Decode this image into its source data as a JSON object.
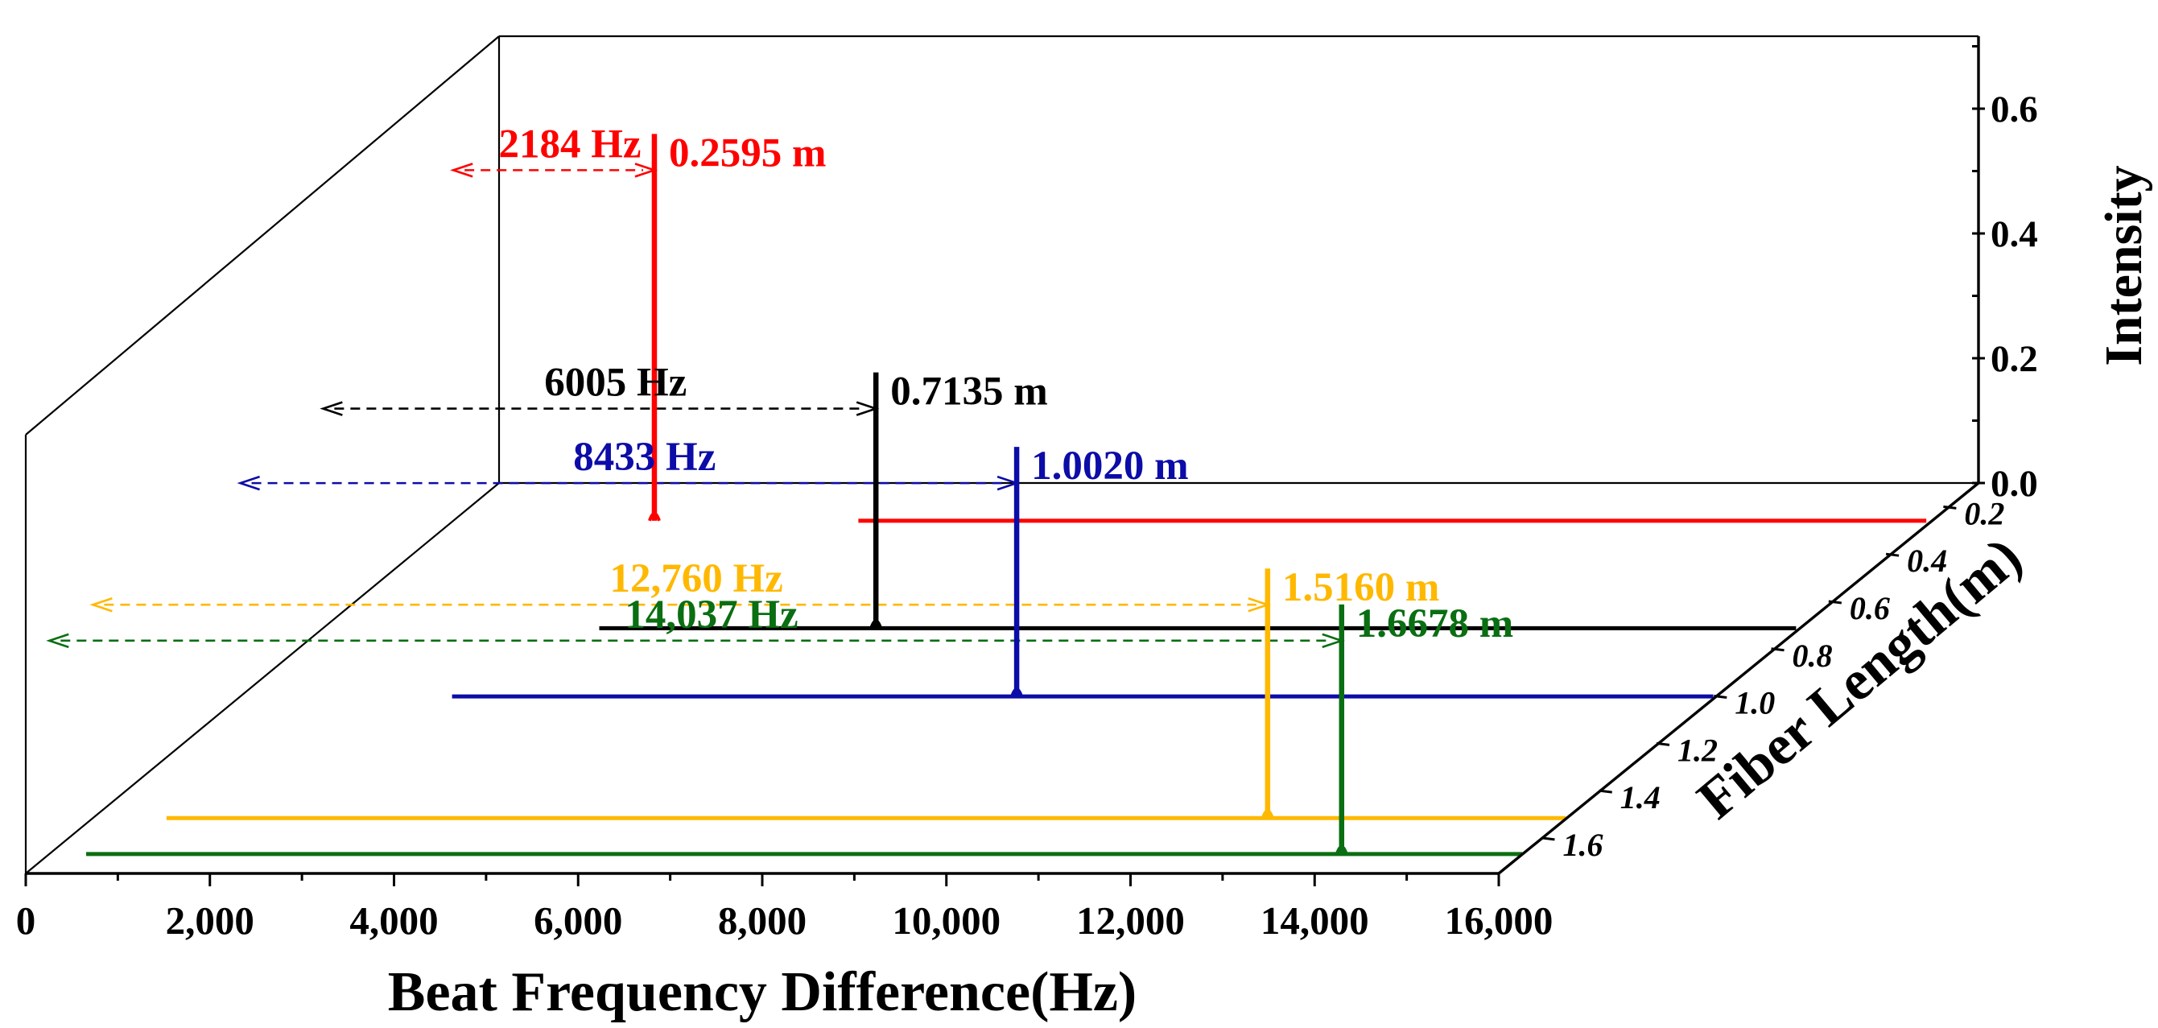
{
  "chart_data": {
    "type": "3d-waterfall-line",
    "xlabel": "Beat Frequency Difference(Hz)",
    "ylabel": "Intensity",
    "zlabel": "Fiber Length(m)",
    "xlim": [
      0,
      16000
    ],
    "ylim": [
      0,
      0.7
    ],
    "zlim": [
      0.1,
      1.75
    ],
    "x_ticks": [
      "0",
      "2,000",
      "4,000",
      "6,000",
      "8,000",
      "10,000",
      "12,000",
      "14,000",
      "16,000"
    ],
    "x_tick_values": [
      0,
      2000,
      4000,
      6000,
      8000,
      10000,
      12000,
      14000,
      16000
    ],
    "y_ticks": [
      "0.0",
      "0.2",
      "0.4",
      "0.6"
    ],
    "y_tick_values": [
      0,
      0.2,
      0.4,
      0.6
    ],
    "z_ticks": [
      "0.2",
      "0.4",
      "0.6",
      "0.8",
      "1.0",
      "1.2",
      "1.4",
      "1.6"
    ],
    "z_tick_values": [
      0.2,
      0.4,
      0.6,
      0.8,
      1.0,
      1.2,
      1.4,
      1.6
    ],
    "series": [
      {
        "name": "0.2595 m",
        "fiber_length": 0.2595,
        "beat_frequency": 2184,
        "peak_intensity": 0.62,
        "color": "#ff0000",
        "freq_label": "2184 Hz",
        "length_label": "0.2595 m",
        "baseline_x": [
          4400,
          16000
        ]
      },
      {
        "name": "0.7135 m",
        "fiber_length": 0.7135,
        "beat_frequency": 6005,
        "peak_intensity": 0.41,
        "color": "#000000",
        "freq_label": "6005 Hz",
        "length_label": "0.7135 m",
        "baseline_x": [
          3000,
          16000
        ]
      },
      {
        "name": "1.0020 m",
        "fiber_length": 1.002,
        "beat_frequency": 8433,
        "peak_intensity": 0.4,
        "color": "#0c0ca8",
        "freq_label": "8433 Hz",
        "length_label": "1.0020 m",
        "baseline_x": [
          2300,
          16000
        ]
      },
      {
        "name": "1.5160 m",
        "fiber_length": 1.516,
        "beat_frequency": 12760,
        "peak_intensity": 0.4,
        "color": "#ffb800",
        "freq_label": "12,760 Hz",
        "length_label": "1.5160 m",
        "baseline_x": [
          800,
          16000
        ]
      },
      {
        "name": "1.6678 m",
        "fiber_length": 1.6678,
        "beat_frequency": 14037,
        "peak_intensity": 0.4,
        "color": "#0a6e12",
        "freq_label": "14,037 Hz",
        "length_label": "1.6678 m",
        "baseline_x": [
          400,
          16000
        ]
      }
    ]
  }
}
